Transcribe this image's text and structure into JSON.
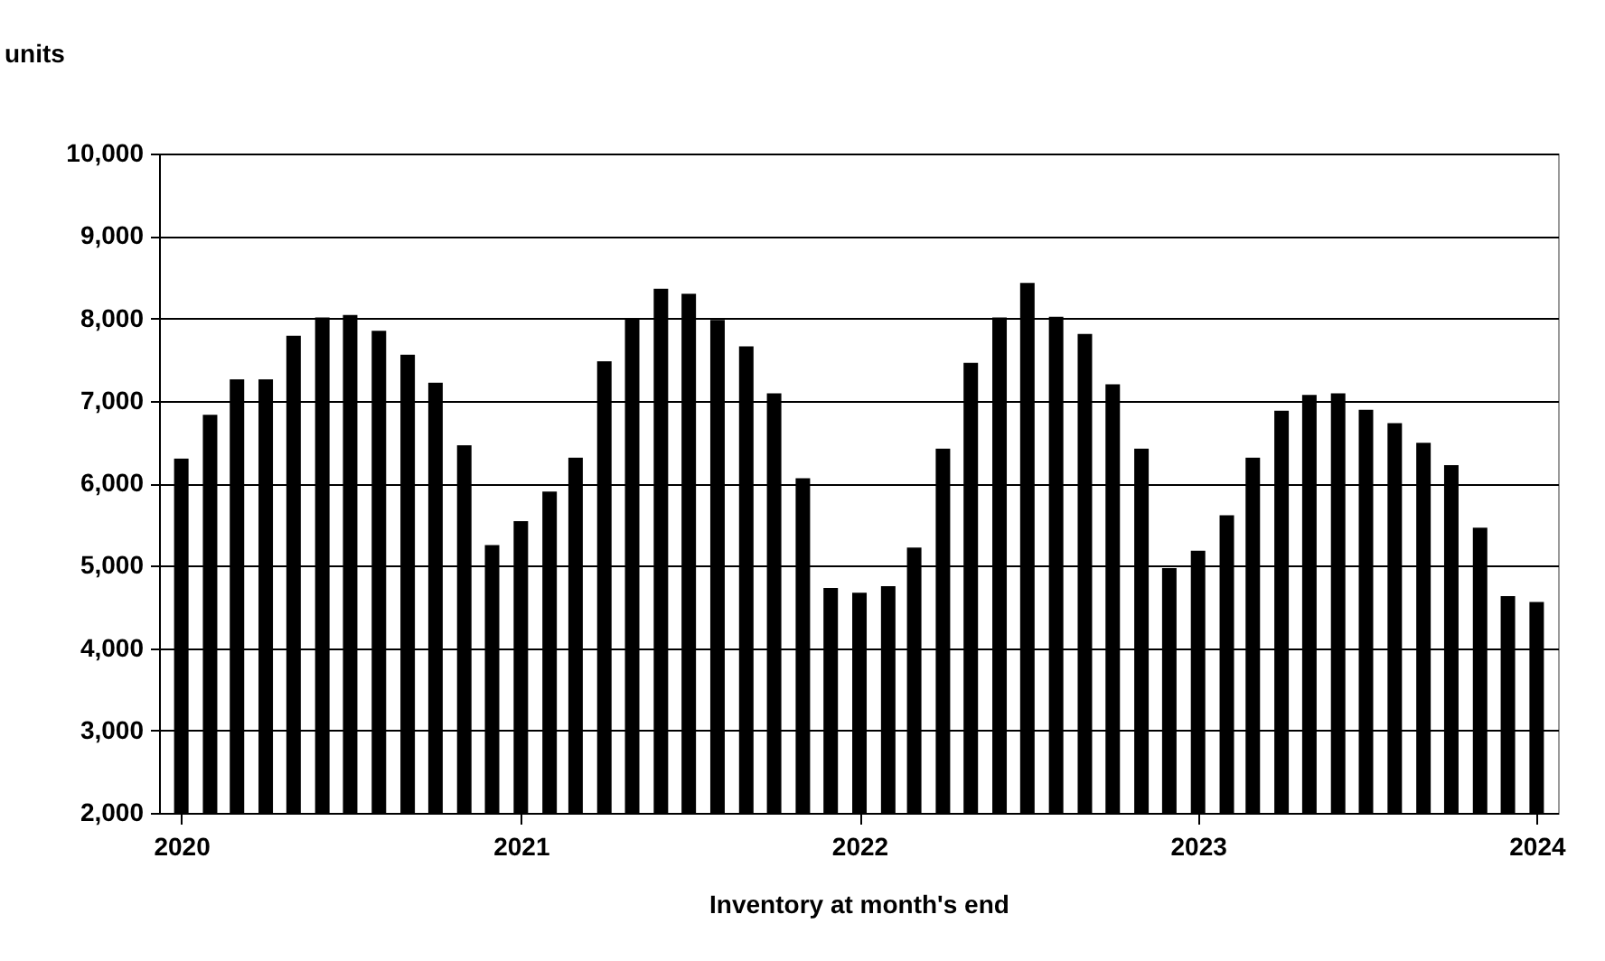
{
  "chart_data": {
    "type": "bar",
    "ylabel": "units",
    "xlabel": "Inventory at month's end",
    "x": [
      "2020-01",
      "2020-02",
      "2020-03",
      "2020-04",
      "2020-05",
      "2020-06",
      "2020-07",
      "2020-08",
      "2020-09",
      "2020-10",
      "2020-11",
      "2020-12",
      "2021-01",
      "2021-02",
      "2021-03",
      "2021-04",
      "2021-05",
      "2021-06",
      "2021-07",
      "2021-08",
      "2021-09",
      "2021-10",
      "2021-11",
      "2021-12",
      "2022-01",
      "2022-02",
      "2022-03",
      "2022-04",
      "2022-05",
      "2022-06",
      "2022-07",
      "2022-08",
      "2022-09",
      "2022-10",
      "2022-11",
      "2022-12",
      "2023-01",
      "2023-02",
      "2023-03",
      "2023-04",
      "2023-05",
      "2023-06",
      "2023-07",
      "2023-08",
      "2023-09",
      "2023-10",
      "2023-11",
      "2023-12",
      "2024-01"
    ],
    "values": [
      6300,
      6830,
      7260,
      7260,
      7790,
      8010,
      8040,
      7850,
      7560,
      7220,
      6460,
      5250,
      5540,
      5900,
      6310,
      7480,
      8000,
      8360,
      8300,
      7980,
      7660,
      7090,
      6060,
      4730,
      4670,
      4750,
      5220,
      6420,
      7460,
      8010,
      8430,
      8020,
      7810,
      7200,
      6420,
      4970,
      5180,
      5610,
      6310,
      6880,
      7070,
      7090,
      6890,
      6730,
      6490,
      6220,
      5460,
      4630,
      4560
    ],
    "color": "#000000",
    "xlim": [
      "2019-12-08",
      "2024-01-24"
    ],
    "xticks": [
      {
        "value": "2020-01",
        "label": "2020"
      },
      {
        "value": "2021-01",
        "label": "2021"
      },
      {
        "value": "2022-01",
        "label": "2022"
      },
      {
        "value": "2023-01",
        "label": "2023"
      },
      {
        "value": "2024-01",
        "label": "2024"
      }
    ],
    "ylim": [
      2000,
      10000
    ],
    "yticks": [
      {
        "value": 2000,
        "label": "2,000"
      },
      {
        "value": 3000,
        "label": "3,000"
      },
      {
        "value": 4000,
        "label": "4,000"
      },
      {
        "value": 5000,
        "label": "5,000"
      },
      {
        "value": 6000,
        "label": "6,000"
      },
      {
        "value": 7000,
        "label": "7,000"
      },
      {
        "value": 8000,
        "label": "8,000"
      },
      {
        "value": 9000,
        "label": "9,000"
      },
      {
        "value": 10000,
        "label": "10,000"
      }
    ],
    "grid": "y"
  }
}
